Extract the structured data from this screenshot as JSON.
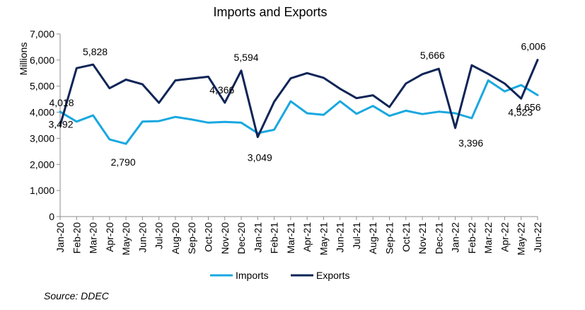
{
  "source": "Source: DDEC",
  "chart_data": {
    "type": "line",
    "title": "Imports and Exports",
    "xlabel": "",
    "ylabel": "Millions",
    "ylim": [
      0,
      7000
    ],
    "yticks": [
      0,
      1000,
      2000,
      3000,
      4000,
      5000,
      6000,
      7000
    ],
    "ytick_labels": [
      "0",
      "1,000",
      "2,000",
      "3,000",
      "4,000",
      "5,000",
      "6,000",
      "7,000"
    ],
    "grid": false,
    "legend_position": "bottom",
    "categories": [
      "Jan-20",
      "Feb-20",
      "Mar-20",
      "Apr-20",
      "May-20",
      "Jun-20",
      "Jul-20",
      "Aug-20",
      "Sep-20",
      "Oct-20",
      "Nov-20",
      "Dec-20",
      "Jan-21",
      "Feb-21",
      "Mar-21",
      "Apr-21",
      "May-21",
      "Jun-21",
      "Jul-21",
      "Aug-21",
      "Sep-21",
      "Oct-21",
      "Nov-21",
      "Dec-21",
      "Jan-22",
      "Feb-22",
      "Mar-22",
      "Apr-22",
      "May-22",
      "Jun-22"
    ],
    "series": [
      {
        "name": "Imports",
        "color": "#19A8E0",
        "values": [
          4018,
          3640,
          3880,
          2960,
          2790,
          3640,
          3660,
          3820,
          3720,
          3600,
          3630,
          3600,
          3200,
          3330,
          4420,
          3960,
          3900,
          4420,
          3940,
          4240,
          3860,
          4060,
          3930,
          4020,
          3960,
          3770,
          5220,
          4800,
          5040,
          4656
        ]
      },
      {
        "name": "Exports",
        "color": "#0F2557",
        "values": [
          3492,
          5690,
          5828,
          4920,
          5250,
          5070,
          4360,
          5220,
          5290,
          5360,
          4366,
          5594,
          3049,
          4400,
          5300,
          5500,
          5320,
          4900,
          4540,
          4650,
          4200,
          5100,
          5460,
          5666,
          3396,
          5800,
          5470,
          5100,
          4523,
          6006
        ]
      }
    ],
    "annotations": [
      {
        "series": 0,
        "index": 0,
        "text": "4,018"
      },
      {
        "series": 1,
        "index": 0,
        "text": "3,492"
      },
      {
        "series": 1,
        "index": 2,
        "text": "5,828"
      },
      {
        "series": 0,
        "index": 4,
        "text": "2,790"
      },
      {
        "series": 1,
        "index": 10,
        "text": "4,366"
      },
      {
        "series": 1,
        "index": 11,
        "text": "5,594"
      },
      {
        "series": 1,
        "index": 12,
        "text": "3,049"
      },
      {
        "series": 1,
        "index": 23,
        "text": "5,666"
      },
      {
        "series": 1,
        "index": 24,
        "text": "3,396"
      },
      {
        "series": 1,
        "index": 28,
        "text": "4,523"
      },
      {
        "series": 0,
        "index": 29,
        "text": "4,656"
      },
      {
        "series": 1,
        "index": 29,
        "text": "6,006"
      }
    ]
  }
}
